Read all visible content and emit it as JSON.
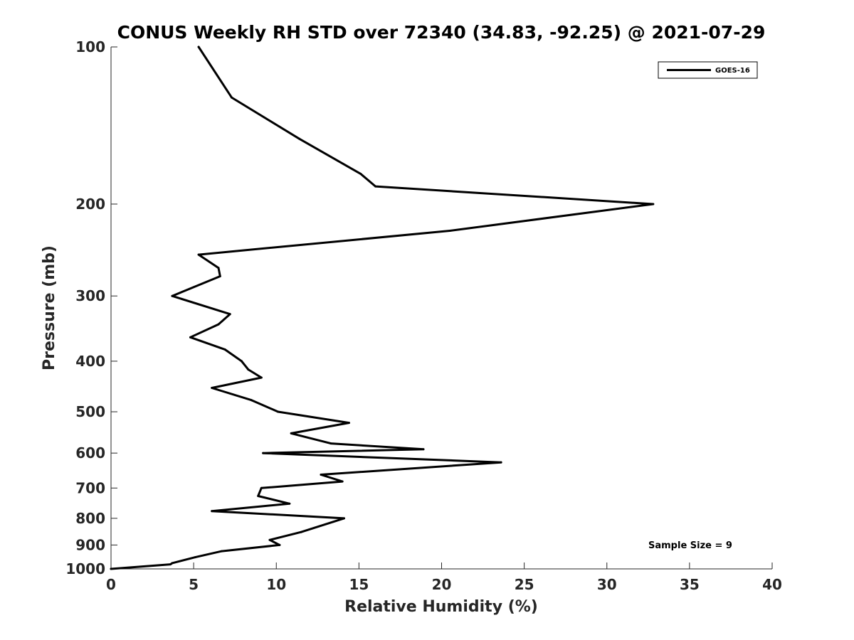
{
  "chart_data": {
    "type": "line",
    "title": "CONUS Weekly RH STD over 72340 (34.83, -92.25) @ 2021-07-29",
    "xlabel": "Relative Humidity (%)",
    "ylabel": "Pressure (mb)",
    "xlim": [
      0,
      40
    ],
    "ylim": [
      100,
      1000
    ],
    "yscale": "log",
    "y_reversed": true,
    "x_ticks": [
      0,
      5,
      10,
      15,
      20,
      25,
      30,
      35,
      40
    ],
    "y_ticks": [
      100,
      200,
      300,
      400,
      500,
      600,
      700,
      800,
      900,
      1000
    ],
    "grid": false,
    "legend_position": "top-right",
    "annotation": "Sample Size = 9",
    "series": [
      {
        "name": "GOES-16",
        "color": "#000000",
        "x": [
          5.3,
          7.3,
          11.4,
          15.1,
          16.0,
          32.8,
          20.5,
          5.3,
          6.5,
          6.6,
          3.7,
          7.2,
          6.5,
          4.8,
          6.9,
          7.9,
          8.3,
          9.1,
          6.1,
          8.5,
          10.1,
          14.4,
          10.9,
          13.3,
          18.9,
          9.2,
          23.6,
          12.7,
          14.0,
          9.1,
          8.9,
          10.8,
          6.1,
          14.1,
          11.5,
          9.6,
          10.2,
          6.7,
          5.1,
          3.7,
          3.6,
          0.0
        ],
        "y": [
          100,
          125,
          150,
          175,
          185,
          200,
          225,
          250,
          265,
          275,
          300,
          325,
          340,
          360,
          380,
          400,
          415,
          430,
          450,
          475,
          500,
          525,
          550,
          575,
          590,
          600,
          625,
          660,
          680,
          700,
          725,
          750,
          775,
          800,
          850,
          880,
          900,
          925,
          950,
          975,
          980,
          1000
        ]
      }
    ]
  }
}
